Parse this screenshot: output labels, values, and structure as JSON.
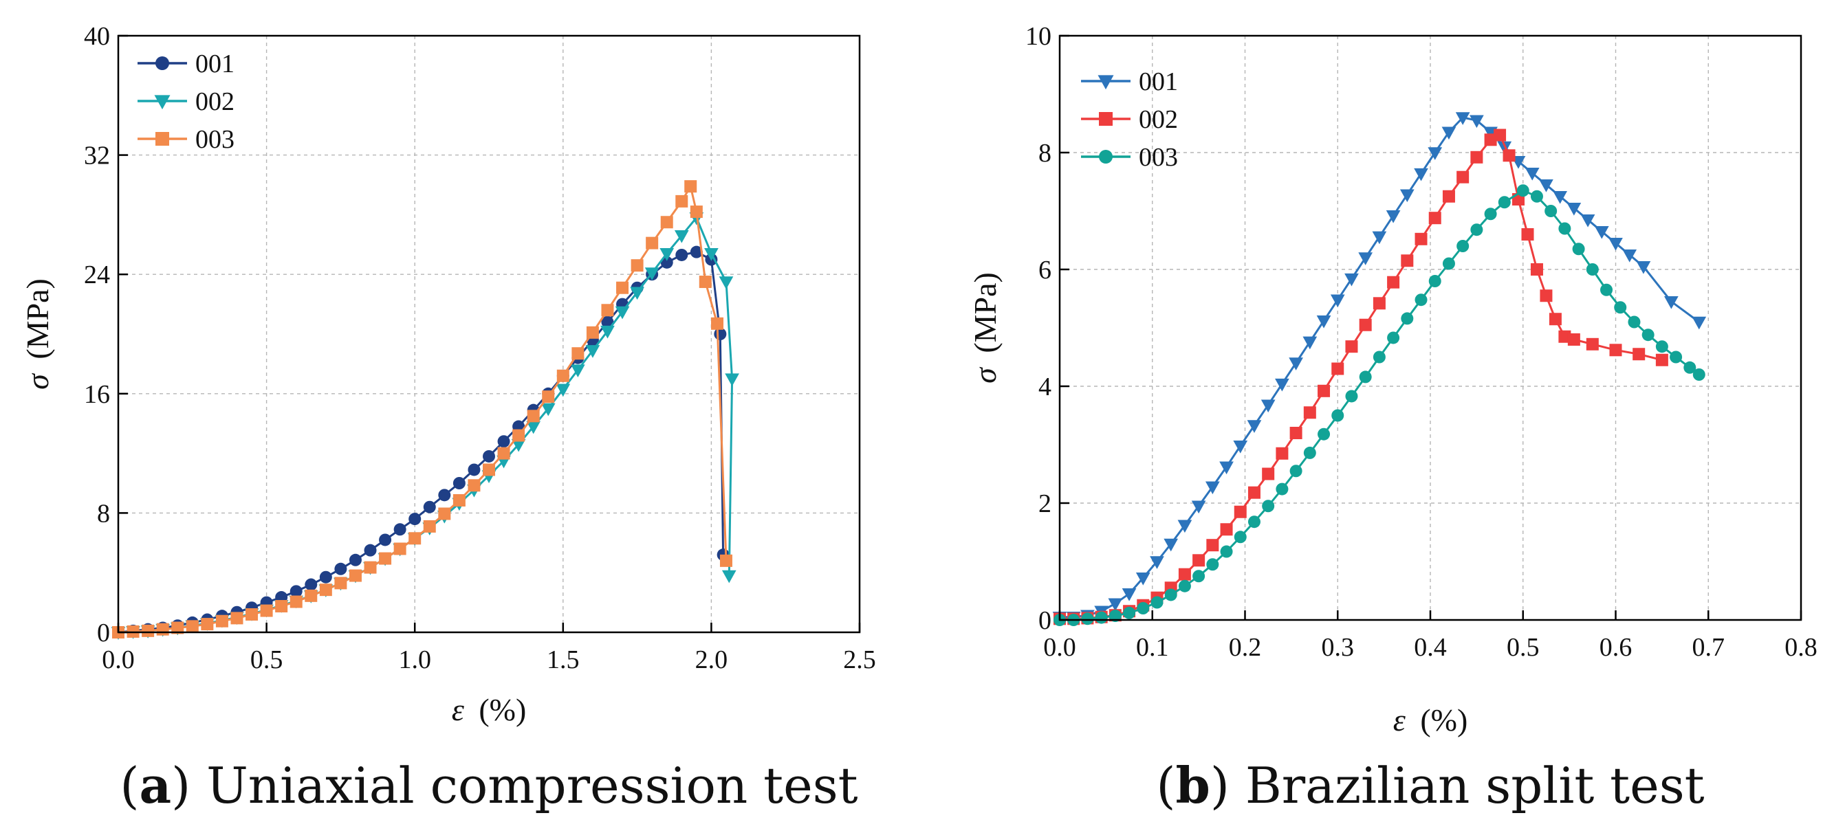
{
  "chart_data": [
    {
      "type": "line",
      "caption_letter": "a",
      "caption_text": "Uniaxial compression test",
      "ylabel_symbol": "σ",
      "ylabel_unit": "(MPa)",
      "xlabel_symbol": "ε",
      "xlabel_unit": "(%)",
      "xlim": [
        0,
        2.5
      ],
      "ylim": [
        0,
        40
      ],
      "xticks": [
        0.0,
        0.5,
        1.0,
        1.5,
        2.0,
        2.5
      ],
      "xtick_labels": [
        "0.0",
        "0.5",
        "1.0",
        "1.5",
        "2.0",
        "2.5"
      ],
      "yticks": [
        0,
        8,
        16,
        24,
        32,
        40
      ],
      "ytick_labels": [
        "0",
        "8",
        "16",
        "24",
        "32",
        "40"
      ],
      "grid": true,
      "legend_position": "top-left",
      "series": [
        {
          "name": "001",
          "marker": "circle",
          "color": "#1f3f86",
          "x": [
            0.0,
            0.05,
            0.1,
            0.15,
            0.2,
            0.25,
            0.3,
            0.35,
            0.4,
            0.45,
            0.5,
            0.55,
            0.6,
            0.65,
            0.7,
            0.75,
            0.8,
            0.85,
            0.9,
            0.95,
            1.0,
            1.05,
            1.1,
            1.15,
            1.2,
            1.25,
            1.3,
            1.35,
            1.4,
            1.45,
            1.5,
            1.55,
            1.6,
            1.65,
            1.7,
            1.75,
            1.8,
            1.85,
            1.9,
            1.95,
            2.0,
            2.03,
            2.04
          ],
          "y": [
            0.0,
            0.1,
            0.2,
            0.3,
            0.45,
            0.65,
            0.85,
            1.1,
            1.35,
            1.65,
            2.0,
            2.35,
            2.75,
            3.2,
            3.7,
            4.25,
            4.85,
            5.5,
            6.2,
            6.9,
            7.6,
            8.4,
            9.2,
            10.0,
            10.9,
            11.8,
            12.8,
            13.8,
            14.9,
            16.0,
            17.2,
            18.4,
            19.6,
            20.8,
            22.0,
            23.1,
            24.0,
            24.8,
            25.3,
            25.5,
            25.0,
            20.0,
            5.2
          ]
        },
        {
          "name": "002",
          "marker": "triangle-down",
          "color": "#1aa7b0",
          "x": [
            0.0,
            0.05,
            0.1,
            0.15,
            0.2,
            0.25,
            0.3,
            0.35,
            0.4,
            0.45,
            0.5,
            0.55,
            0.6,
            0.65,
            0.7,
            0.75,
            0.8,
            0.85,
            0.9,
            0.95,
            1.0,
            1.05,
            1.1,
            1.15,
            1.2,
            1.25,
            1.3,
            1.35,
            1.4,
            1.45,
            1.5,
            1.55,
            1.6,
            1.65,
            1.7,
            1.75,
            1.8,
            1.85,
            1.9,
            1.95,
            2.0,
            2.05,
            2.07,
            2.06
          ],
          "y": [
            0.0,
            0.05,
            0.1,
            0.2,
            0.3,
            0.45,
            0.6,
            0.8,
            1.0,
            1.25,
            1.5,
            1.8,
            2.1,
            2.45,
            2.85,
            3.3,
            3.8,
            4.35,
            4.95,
            5.6,
            6.3,
            7.0,
            7.8,
            8.65,
            9.55,
            10.5,
            11.5,
            12.6,
            13.8,
            15.0,
            16.3,
            17.6,
            18.9,
            20.2,
            21.5,
            22.8,
            24.1,
            25.4,
            26.6,
            27.8,
            25.4,
            23.5,
            17.0,
            3.8
          ]
        },
        {
          "name": "003",
          "marker": "square",
          "color": "#f28a4b",
          "x": [
            0.0,
            0.05,
            0.1,
            0.15,
            0.2,
            0.25,
            0.3,
            0.35,
            0.4,
            0.45,
            0.5,
            0.55,
            0.6,
            0.65,
            0.7,
            0.75,
            0.8,
            0.85,
            0.9,
            0.95,
            1.0,
            1.05,
            1.1,
            1.15,
            1.2,
            1.25,
            1.3,
            1.35,
            1.4,
            1.45,
            1.5,
            1.55,
            1.6,
            1.65,
            1.7,
            1.75,
            1.8,
            1.85,
            1.9,
            1.93,
            1.95,
            1.98,
            2.02,
            2.05
          ],
          "y": [
            0.0,
            0.05,
            0.1,
            0.2,
            0.3,
            0.4,
            0.55,
            0.75,
            0.95,
            1.2,
            1.45,
            1.75,
            2.05,
            2.45,
            2.85,
            3.3,
            3.8,
            4.35,
            4.95,
            5.6,
            6.3,
            7.1,
            7.95,
            8.85,
            9.85,
            10.9,
            12.0,
            13.2,
            14.5,
            15.8,
            17.2,
            18.7,
            20.1,
            21.6,
            23.1,
            24.6,
            26.1,
            27.5,
            28.9,
            29.9,
            28.2,
            23.5,
            20.7,
            4.8
          ]
        }
      ]
    },
    {
      "type": "line",
      "caption_letter": "b",
      "caption_text": "Brazilian split test",
      "ylabel_symbol": "σ",
      "ylabel_unit": "(MPa)",
      "xlabel_symbol": "ε",
      "xlabel_unit": "(%)",
      "xlim": [
        0,
        0.8
      ],
      "ylim": [
        0,
        10
      ],
      "xticks": [
        0.0,
        0.1,
        0.2,
        0.3,
        0.4,
        0.5,
        0.6,
        0.7,
        0.8
      ],
      "xtick_labels": [
        "0.0",
        "0.1",
        "0.2",
        "0.3",
        "0.4",
        "0.5",
        "0.6",
        "0.7",
        "0.8"
      ],
      "yticks": [
        0,
        2,
        4,
        6,
        8,
        10
      ],
      "ytick_labels": [
        "0",
        "2",
        "4",
        "6",
        "8",
        "10"
      ],
      "grid": true,
      "legend_position": "top-left",
      "series": [
        {
          "name": "001",
          "marker": "triangle-down",
          "color": "#2c74bc",
          "x": [
            0.0,
            0.015,
            0.03,
            0.045,
            0.06,
            0.075,
            0.09,
            0.105,
            0.12,
            0.135,
            0.15,
            0.165,
            0.18,
            0.195,
            0.21,
            0.225,
            0.24,
            0.255,
            0.27,
            0.285,
            0.3,
            0.315,
            0.33,
            0.345,
            0.36,
            0.375,
            0.39,
            0.405,
            0.42,
            0.435,
            0.45,
            0.465,
            0.48,
            0.495,
            0.51,
            0.525,
            0.54,
            0.555,
            0.57,
            0.585,
            0.6,
            0.615,
            0.63,
            0.66,
            0.69
          ],
          "y": [
            0.05,
            0.05,
            0.08,
            0.15,
            0.28,
            0.45,
            0.72,
            1.0,
            1.3,
            1.62,
            1.95,
            2.28,
            2.62,
            2.98,
            3.33,
            3.68,
            4.04,
            4.4,
            4.76,
            5.12,
            5.48,
            5.84,
            6.2,
            6.56,
            6.92,
            7.28,
            7.64,
            8.0,
            8.35,
            8.6,
            8.55,
            8.35,
            8.1,
            7.85,
            7.65,
            7.45,
            7.25,
            7.05,
            6.85,
            6.65,
            6.45,
            6.25,
            6.05,
            5.45,
            5.1
          ]
        },
        {
          "name": "002",
          "marker": "square",
          "color": "#ee3d3d",
          "x": [
            0.0,
            0.015,
            0.03,
            0.045,
            0.06,
            0.075,
            0.09,
            0.105,
            0.12,
            0.135,
            0.15,
            0.165,
            0.18,
            0.195,
            0.21,
            0.225,
            0.24,
            0.255,
            0.27,
            0.285,
            0.3,
            0.315,
            0.33,
            0.345,
            0.36,
            0.375,
            0.39,
            0.405,
            0.42,
            0.435,
            0.45,
            0.465,
            0.475,
            0.485,
            0.495,
            0.505,
            0.515,
            0.525,
            0.535,
            0.545,
            0.555,
            0.575,
            0.6,
            0.625,
            0.65
          ],
          "y": [
            0.02,
            0.02,
            0.03,
            0.05,
            0.08,
            0.15,
            0.25,
            0.38,
            0.55,
            0.78,
            1.02,
            1.28,
            1.55,
            1.85,
            2.18,
            2.5,
            2.85,
            3.2,
            3.55,
            3.92,
            4.3,
            4.68,
            5.05,
            5.42,
            5.78,
            6.15,
            6.52,
            6.88,
            7.25,
            7.58,
            7.92,
            8.22,
            8.3,
            7.95,
            7.2,
            6.6,
            6.0,
            5.55,
            5.15,
            4.85,
            4.8,
            4.72,
            4.62,
            4.55,
            4.45
          ]
        },
        {
          "name": "003",
          "marker": "circle",
          "color": "#12a396",
          "x": [
            0.0,
            0.015,
            0.03,
            0.045,
            0.06,
            0.075,
            0.09,
            0.105,
            0.12,
            0.135,
            0.15,
            0.165,
            0.18,
            0.195,
            0.21,
            0.225,
            0.24,
            0.255,
            0.27,
            0.285,
            0.3,
            0.315,
            0.33,
            0.345,
            0.36,
            0.375,
            0.39,
            0.405,
            0.42,
            0.435,
            0.45,
            0.465,
            0.48,
            0.5,
            0.515,
            0.53,
            0.545,
            0.56,
            0.575,
            0.59,
            0.605,
            0.62,
            0.635,
            0.65,
            0.665,
            0.68,
            0.69
          ],
          "y": [
            0.0,
            0.0,
            0.02,
            0.04,
            0.07,
            0.12,
            0.2,
            0.3,
            0.43,
            0.58,
            0.75,
            0.95,
            1.17,
            1.42,
            1.68,
            1.95,
            2.24,
            2.55,
            2.86,
            3.18,
            3.5,
            3.83,
            4.16,
            4.5,
            4.83,
            5.16,
            5.48,
            5.8,
            6.1,
            6.4,
            6.68,
            6.95,
            7.15,
            7.35,
            7.25,
            7.0,
            6.7,
            6.35,
            6.0,
            5.65,
            5.35,
            5.1,
            4.88,
            4.68,
            4.5,
            4.32,
            4.2
          ]
        }
      ]
    }
  ]
}
